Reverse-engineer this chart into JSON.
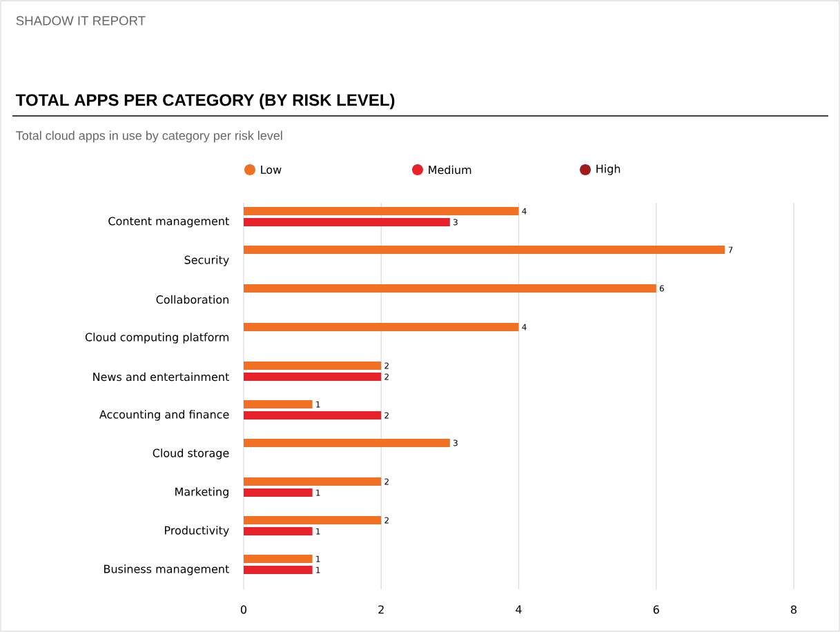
{
  "chart_data": {
    "type": "bar",
    "orientation": "horizontal",
    "title": "TOTAL APPS PER CATEGORY (BY RISK LEVEL)",
    "subtitle": "Total cloud apps in use by category per risk level",
    "annotations": [
      "SHADOW IT REPORT"
    ],
    "categories": [
      "Content management",
      "Security",
      "Collaboration",
      "Cloud computing platform",
      "News and entertainment",
      "Accounting and finance",
      "Cloud storage",
      "Marketing",
      "Productivity",
      "Business management"
    ],
    "series": [
      {
        "name": "Low",
        "color": "#f07024",
        "values": [
          4,
          7,
          6,
          4,
          2,
          1,
          3,
          2,
          2,
          1
        ]
      },
      {
        "name": "Medium",
        "color": "#e8222b",
        "values": [
          3,
          null,
          null,
          null,
          2,
          2,
          null,
          1,
          1,
          1
        ]
      },
      {
        "name": "High",
        "color": "#a01c1c",
        "values": [
          null,
          null,
          null,
          null,
          null,
          null,
          null,
          null,
          null,
          null
        ]
      }
    ],
    "xlim": [
      0,
      8
    ],
    "xticks": [
      0,
      2,
      4,
      6,
      8
    ],
    "grid": "x",
    "legend": "top",
    "data_labels": true
  }
}
